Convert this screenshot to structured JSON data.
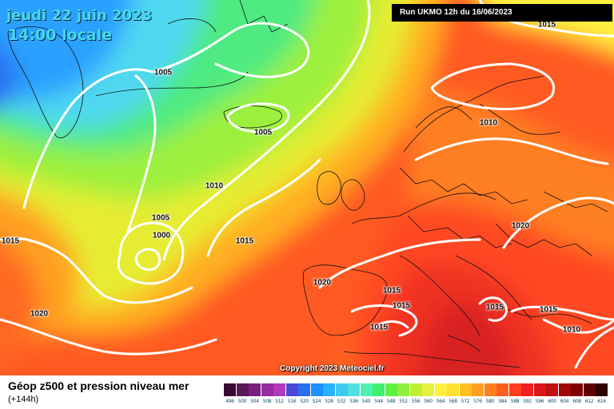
{
  "header": {
    "date_line": "jeudi 22 juin 2023",
    "time_line": "14:00 locale",
    "run_info": "Run UKMO 12h du 16/06/2023"
  },
  "copyright": "Copyright 2023 Meteociel.fr",
  "footer": {
    "map_name": "Géop z500 et pression niveau mer",
    "lead_time": "(+144h)"
  },
  "isobar_labels": [
    "1015",
    "1005",
    "1005",
    "1010",
    "1010",
    "1005",
    "1000",
    "1015",
    "1015",
    "1020",
    "1020",
    "1015",
    "1015",
    "1015",
    "1015",
    "1015",
    "1010",
    "1020"
  ],
  "color_scale": {
    "ticks": [
      "496",
      "500",
      "504",
      "508",
      "512",
      "516",
      "520",
      "524",
      "528",
      "532",
      "536",
      "540",
      "544",
      "548",
      "552",
      "556",
      "560",
      "564",
      "568",
      "572",
      "576",
      "580",
      "584",
      "588",
      "592",
      "596",
      "600",
      "604",
      "608",
      "612",
      "616"
    ],
    "colors": [
      "#3a0a30",
      "#5a1a5a",
      "#7a207e",
      "#962a9e",
      "#b03ab8",
      "#4a4ad8",
      "#2a6ef0",
      "#1e90ff",
      "#2ab0ff",
      "#40c8f0",
      "#50e0e0",
      "#50f0b0",
      "#40f070",
      "#60f040",
      "#90f040",
      "#c0f030",
      "#e8f040",
      "#fff040",
      "#ffe030",
      "#ffc020",
      "#ffa020",
      "#ff8020",
      "#ff6020",
      "#ff4020",
      "#f02020",
      "#d81818",
      "#c01010",
      "#a00808",
      "#800000",
      "#600000",
      "#300000"
    ]
  }
}
